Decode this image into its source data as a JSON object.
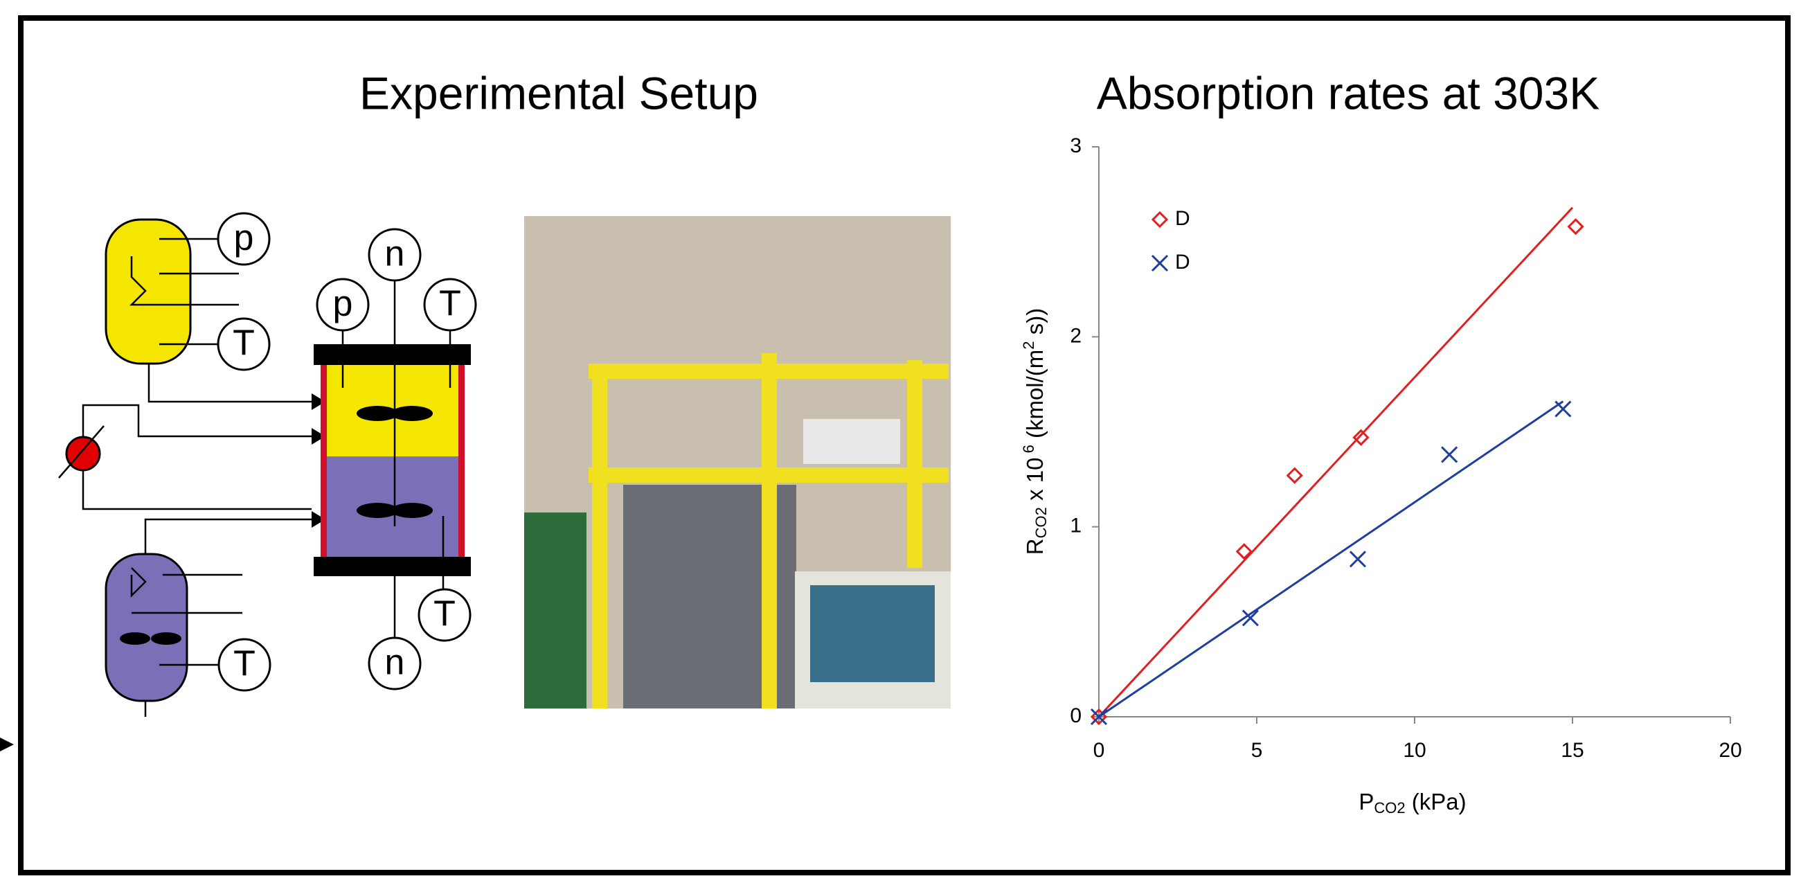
{
  "setup": {
    "title": "Experimental Setup",
    "gauges": [
      "p",
      "T",
      "p",
      "n",
      "T",
      "T",
      "n",
      "T"
    ]
  },
  "chart_data": {
    "type": "scatter",
    "title": "Absorption rates at 303K",
    "xlabel": {
      "main": "P",
      "sub": "CO2",
      "rest": " (kPa)"
    },
    "ylabel": {
      "main": "R",
      "sub": "CO2",
      "mid": " x 10",
      "sup": " 6",
      "rest": " (kmol/(m",
      "sup2": "2",
      "end": " s))"
    },
    "xlim": [
      0,
      20
    ],
    "xticks": [
      0,
      5,
      10,
      15,
      20
    ],
    "ylim": [
      0,
      3
    ],
    "yticks": [
      0,
      1,
      2,
      3
    ],
    "grid": false,
    "legend": "upper-left",
    "series": [
      {
        "name": "D",
        "color": "#e02020",
        "marker": "diamond",
        "x": [
          0,
          4.6,
          6.2,
          8.3,
          15.1
        ],
        "values": [
          0,
          0.87,
          1.27,
          1.47,
          2.58
        ],
        "trendline_x": [
          0,
          15
        ],
        "trendline_y": [
          0,
          2.68
        ]
      },
      {
        "name": "D",
        "color": "#1f3f9f",
        "marker": "x",
        "x": [
          0,
          4.8,
          8.2,
          11.1,
          14.7
        ],
        "values": [
          0,
          0.52,
          0.83,
          1.38,
          1.62
        ],
        "trendline_x": [
          0,
          14.7
        ],
        "trendline_y": [
          0,
          1.66
        ]
      }
    ]
  }
}
